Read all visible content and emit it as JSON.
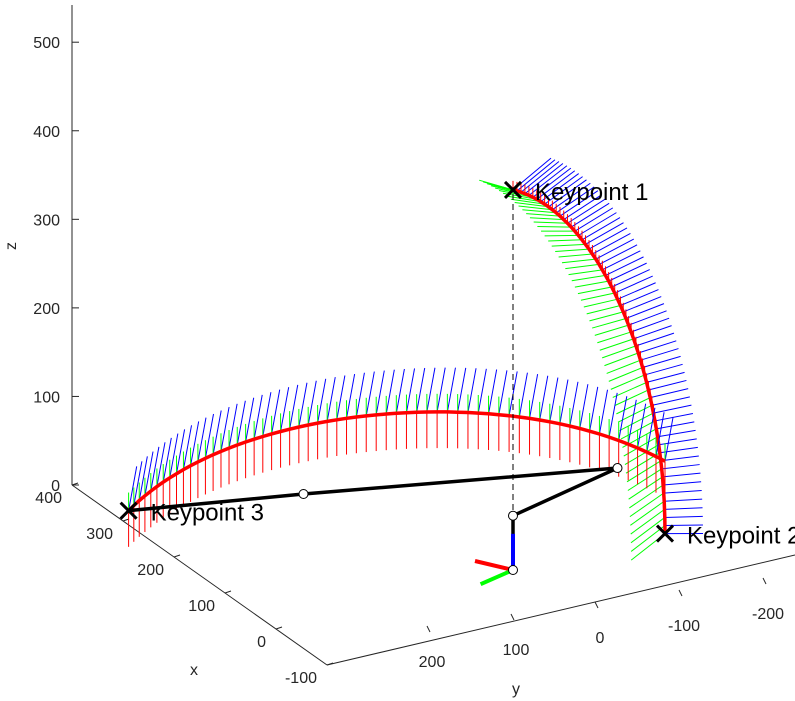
{
  "chart_data": {
    "type": "scatter",
    "projection": "3d",
    "grid": false,
    "xlabel": "x",
    "ylabel": "y",
    "zlabel": "z",
    "xlim": [
      -100,
      400
    ],
    "ylim": [
      -200,
      200
    ],
    "zlim": [
      0,
      500
    ],
    "x_ticks": [
      "400",
      "300",
      "200",
      "100",
      "0",
      "-100"
    ],
    "y_ticks": [
      "200",
      "100",
      "0",
      "-100",
      "-200"
    ],
    "z_ticks": [
      "500",
      "400",
      "300",
      "200",
      "100",
      "0"
    ],
    "colors": {
      "frame_x": "#ff0000",
      "frame_y": "#00ff00",
      "frame_z": "#0000ff",
      "arm": "#000000",
      "axes": "#262626"
    },
    "keypoints": [
      {
        "label": "Keypoint 1",
        "x": 0,
        "y": 0,
        "z": 420
      },
      {
        "label": "Keypoint 2",
        "x": 0,
        "y": -160,
        "z": 80
      },
      {
        "label": "Keypoint 3",
        "x": 240,
        "y": 200,
        "z": 110
      }
    ],
    "robot_arm": {
      "joints": [
        {
          "x": 0,
          "y": 0,
          "z": 0
        },
        {
          "x": 0,
          "y": 0,
          "z": 60
        },
        {
          "x": 0,
          "y": -110,
          "z": 140
        },
        {
          "x": 200,
          "y": 50,
          "z": 150
        },
        {
          "x": 240,
          "y": 200,
          "z": 110
        }
      ]
    }
  }
}
